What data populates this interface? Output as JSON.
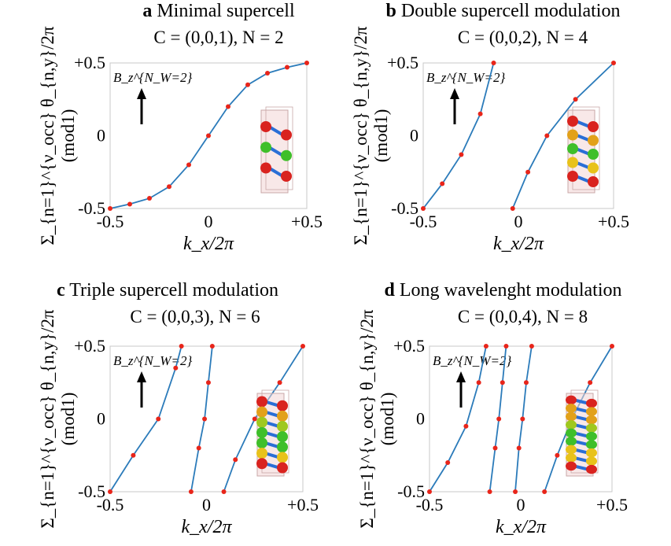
{
  "panels": [
    {
      "letter": "a",
      "title": "Minimal supercell",
      "subtitle": "C = (0,0,1), N = 2"
    },
    {
      "letter": "b",
      "title": "Double supercell modulation",
      "subtitle": "C = (0,0,2), N = 4"
    },
    {
      "letter": "c",
      "title": "Triple supercell modulation",
      "subtitle": "C = (0,0,3), N = 6"
    },
    {
      "letter": "d",
      "title": "Long wavelenght modulation",
      "subtitle": "C = (0,0,4), N = 8"
    }
  ],
  "axis": {
    "xlabel": "k_x/2π",
    "ylabel_top": "Σ_{n=1}^{ν_occ} θ_{n,y}/2π",
    "ylabel_bottom": "(mod1)",
    "field_label": "B_z^{N_W=2}",
    "xticks": [
      "-0.5",
      "0",
      "+0.5"
    ],
    "yticks": [
      "+0.5",
      "0",
      "-0.5"
    ]
  },
  "colors": {
    "line": "#2b7bba",
    "marker": "#e8251a"
  },
  "chart_data": [
    {
      "type": "line",
      "title": "a Minimal supercell",
      "subtitle": "C = (0,0,1), N = 2",
      "xlabel": "k_x/2π",
      "ylabel": "Σ_{n=1}^{ν_occ} θ_{n,y}/2π (mod1)",
      "xlim": [
        -0.5,
        0.5
      ],
      "ylim": [
        -0.5,
        0.5
      ],
      "xticks": [
        -0.5,
        0,
        0.5
      ],
      "yticks": [
        -0.5,
        0,
        0.5
      ],
      "series": [
        {
          "x": [
            -0.5,
            -0.4,
            -0.3,
            -0.2,
            -0.1,
            0.0,
            0.1,
            0.2,
            0.3,
            0.4,
            0.5
          ],
          "y": [
            -0.5,
            -0.47,
            -0.43,
            -0.35,
            -0.2,
            0.0,
            0.2,
            0.35,
            0.43,
            0.47,
            0.5
          ]
        }
      ]
    },
    {
      "type": "line",
      "title": "b Double supercell modulation",
      "subtitle": "C = (0,0,2), N = 4",
      "xlabel": "k_x/2π",
      "ylabel": "Σ_{n=1}^{ν_occ} θ_{n,y}/2π (mod1)",
      "xlim": [
        -0.5,
        0.5
      ],
      "ylim": [
        -0.5,
        0.5
      ],
      "xticks": [
        -0.5,
        0,
        0.5
      ],
      "yticks": [
        -0.5,
        0,
        0.5
      ],
      "series": [
        {
          "x": [
            -0.5,
            -0.4,
            -0.3,
            -0.2,
            -0.13
          ],
          "y": [
            -0.5,
            -0.33,
            -0.13,
            0.15,
            0.5
          ]
        },
        {
          "x": [
            -0.03,
            0.05,
            0.15,
            0.3,
            0.5
          ],
          "y": [
            -0.5,
            -0.25,
            0.0,
            0.25,
            0.5
          ]
        }
      ]
    },
    {
      "type": "line",
      "title": "c Triple supercell modulation",
      "subtitle": "C = (0,0,3), N = 6",
      "xlabel": "k_x/2π",
      "ylabel": "Σ_{n=1}^{ν_occ} θ_{n,y}/2π (mod1)",
      "xlim": [
        -0.5,
        0.5
      ],
      "ylim": [
        -0.5,
        0.5
      ],
      "xticks": [
        -0.5,
        0,
        0.5
      ],
      "yticks": [
        -0.5,
        0,
        0.5
      ],
      "series": [
        {
          "x": [
            -0.5,
            -0.38,
            -0.25,
            -0.16,
            -0.13
          ],
          "y": [
            -0.5,
            -0.25,
            0.0,
            0.35,
            0.5
          ]
        },
        {
          "x": [
            -0.08,
            -0.04,
            -0.01,
            0.01,
            0.03
          ],
          "y": [
            -0.5,
            -0.2,
            0.0,
            0.25,
            0.5
          ]
        },
        {
          "x": [
            0.09,
            0.15,
            0.25,
            0.38,
            0.5
          ],
          "y": [
            -0.5,
            -0.28,
            0.0,
            0.25,
            0.5
          ]
        }
      ]
    },
    {
      "type": "line",
      "title": "d Long wavelenght modulation",
      "subtitle": "C = (0,0,4), N = 8",
      "xlabel": "k_x/2π",
      "ylabel": "Σ_{n=1}^{ν_occ} θ_{n,y}/2π (mod1)",
      "xlim": [
        -0.5,
        0.5
      ],
      "ylim": [
        -0.5,
        0.5
      ],
      "xticks": [
        -0.5,
        0,
        0.5
      ],
      "yticks": [
        -0.5,
        0,
        0.5
      ],
      "series": [
        {
          "x": [
            -0.5,
            -0.4,
            -0.3,
            -0.23,
            -0.19
          ],
          "y": [
            -0.5,
            -0.3,
            -0.05,
            0.25,
            0.5
          ]
        },
        {
          "x": [
            -0.17,
            -0.14,
            -0.12,
            -0.1,
            -0.08
          ],
          "y": [
            -0.5,
            -0.2,
            0.0,
            0.25,
            0.5
          ]
        },
        {
          "x": [
            -0.03,
            -0.01,
            0.01,
            0.03,
            0.06
          ],
          "y": [
            -0.5,
            -0.2,
            0.0,
            0.25,
            0.5
          ]
        },
        {
          "x": [
            0.13,
            0.2,
            0.28,
            0.38,
            0.5
          ],
          "y": [
            -0.5,
            -0.25,
            0.0,
            0.25,
            0.5
          ]
        }
      ]
    }
  ]
}
